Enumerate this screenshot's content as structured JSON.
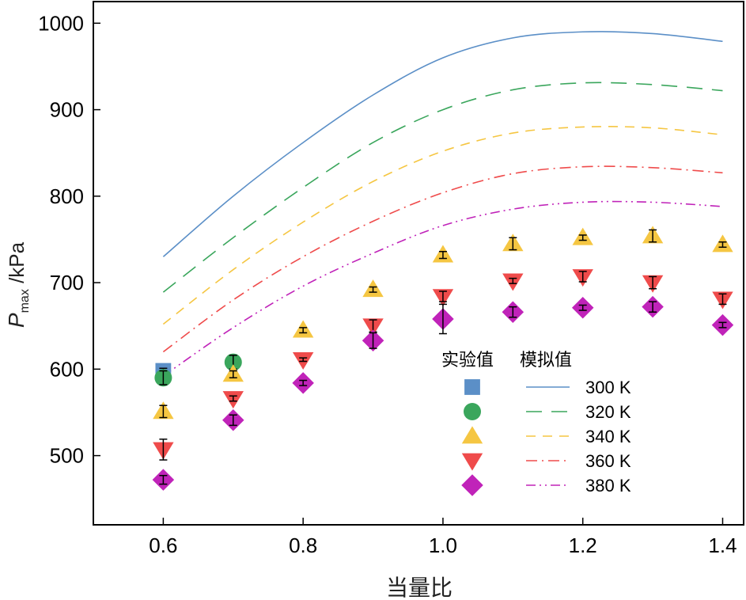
{
  "chart_data": {
    "type": "line",
    "title": "",
    "xlabel": "当量比",
    "ylabel_main": "P",
    "ylabel_sub": "max",
    "ylabel_unit": " /kPa",
    "xlim": [
      0.5,
      1.43
    ],
    "ylim": [
      420,
      1025
    ],
    "xticks": [
      "0.6",
      "0.8",
      "1.0",
      "1.2",
      "1.4"
    ],
    "xtick_values": [
      0.6,
      0.8,
      1.0,
      1.2,
      1.4
    ],
    "yticks": [
      "500",
      "600",
      "700",
      "800",
      "900",
      "1000"
    ],
    "ytick_values": [
      500,
      600,
      700,
      800,
      900,
      1000
    ],
    "legend": {
      "exp_header": "实验值",
      "sim_header": "模拟值"
    },
    "series": [
      {
        "name": "300 K",
        "color": "#5b8fc7",
        "marker": "square",
        "dash": "solid",
        "sim_x": [
          0.6,
          0.7,
          0.8,
          0.9,
          1.0,
          1.1,
          1.2,
          1.3,
          1.4
        ],
        "sim_y": [
          730,
          800,
          862,
          917,
          960,
          983,
          990,
          988,
          979
        ],
        "exp_x": [
          0.6
        ],
        "exp_y": [
          598
        ],
        "exp_err": [
          3
        ]
      },
      {
        "name": "320 K",
        "color": "#3aa65c",
        "marker": "circle",
        "dash": "long",
        "sim_x": [
          0.6,
          0.7,
          0.8,
          0.9,
          1.0,
          1.1,
          1.2,
          1.3,
          1.4
        ],
        "sim_y": [
          689,
          752,
          810,
          862,
          900,
          923,
          931,
          929,
          922
        ],
        "exp_x": [
          0.6,
          0.7
        ],
        "exp_y": [
          590,
          608
        ],
        "exp_err": [
          8,
          8
        ]
      },
      {
        "name": "340 K",
        "color": "#f5c642",
        "marker": "triangle-up",
        "dash": "medium",
        "sim_x": [
          0.6,
          0.7,
          0.8,
          0.9,
          1.0,
          1.1,
          1.2,
          1.3,
          1.4
        ],
        "sim_y": [
          652,
          715,
          770,
          817,
          852,
          873,
          880,
          879,
          871
        ],
        "exp_x": [
          0.6,
          0.7,
          0.8,
          0.9,
          1.0,
          1.1,
          1.2,
          1.3,
          1.4
        ],
        "exp_y": [
          551,
          594,
          645,
          692,
          732,
          745,
          752,
          754,
          744
        ],
        "exp_err": [
          7,
          4,
          3,
          3,
          4,
          7,
          3,
          7,
          3
        ]
      },
      {
        "name": "360 K",
        "color": "#ef4b4b",
        "marker": "triangle-down",
        "dash": "dashdot",
        "sim_x": [
          0.6,
          0.7,
          0.8,
          0.9,
          1.0,
          1.1,
          1.2,
          1.3,
          1.4
        ],
        "sim_y": [
          620,
          680,
          730,
          771,
          804,
          826,
          834,
          833,
          827
        ],
        "exp_x": [
          0.6,
          0.7,
          0.8,
          0.9,
          1.0,
          1.1,
          1.2,
          1.3,
          1.4
        ],
        "exp_y": [
          507,
          566,
          611,
          650,
          684,
          702,
          707,
          700,
          681
        ],
        "exp_err": [
          12,
          3,
          2,
          7,
          6,
          3,
          6,
          7,
          6
        ]
      },
      {
        "name": "380 K",
        "color": "#c023b9",
        "marker": "diamond",
        "dash": "dashdotdot",
        "sim_x": [
          0.6,
          0.7,
          0.8,
          0.9,
          1.0,
          1.1,
          1.2,
          1.3,
          1.4
        ],
        "sim_y": [
          592,
          648,
          696,
          734,
          766,
          785,
          793,
          793,
          788
        ],
        "exp_x": [
          0.6,
          0.7,
          0.8,
          0.9,
          1.0,
          1.1,
          1.2,
          1.3,
          1.4
        ],
        "exp_y": [
          472,
          541,
          584,
          633,
          658,
          666,
          671,
          672,
          651
        ],
        "exp_err": [
          5,
          6,
          3,
          9,
          17,
          6,
          3,
          6,
          3
        ]
      }
    ]
  }
}
